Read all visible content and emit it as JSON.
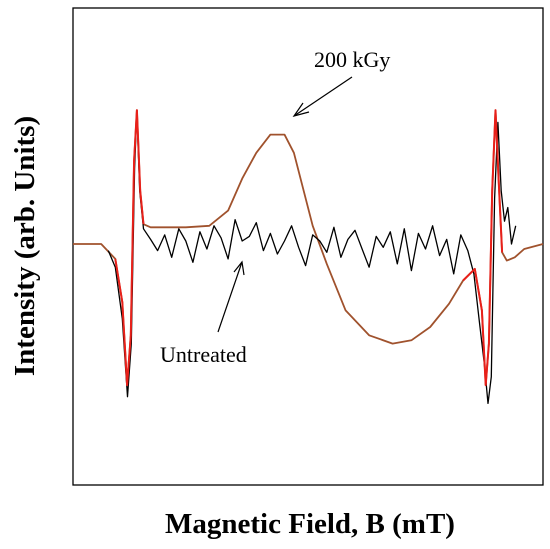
{
  "chart_data": {
    "type": "line",
    "title": "",
    "xlabel": "Magnetic Field, B (mT)",
    "ylabel": "Intensity (arb. Units)",
    "xlim": [
      0,
      100
    ],
    "ylim": [
      -100,
      100
    ],
    "grid": false,
    "legend": "none",
    "series": [
      {
        "name": "200 kGy",
        "color": "#a0522d",
        "peak_color": "#e8201a",
        "x": [
          0,
          6,
          9,
          10.5,
          11.5,
          12.3,
          13,
          13.6,
          14.3,
          15,
          16.5,
          19,
          24,
          29,
          33,
          36,
          39,
          42,
          45,
          47,
          49,
          51,
          54,
          58,
          63,
          68,
          72,
          76,
          80,
          83,
          85.5,
          87,
          87.8,
          88.5,
          89.2,
          89.9,
          90.6,
          91.3,
          92.3,
          94,
          96,
          100
        ],
        "y": [
          0,
          0,
          -9,
          -35,
          -85,
          -55,
          55,
          88,
          35,
          13,
          11,
          11,
          11,
          12,
          22,
          43,
          60,
          72,
          72,
          60,
          36,
          12,
          -12,
          -40,
          -55,
          -60,
          -58,
          -50,
          -36,
          -22,
          -15,
          -40,
          -85,
          -60,
          35,
          88,
          40,
          -5,
          -10,
          -8,
          -3,
          0
        ]
      },
      {
        "name": "Untreated",
        "color": "#000000",
        "x": [
          7.5,
          9,
          10.5,
          11.6,
          12.4,
          13.1,
          13.6,
          14.2,
          15,
          16.5,
          18,
          19.5,
          21,
          22.5,
          24,
          25.5,
          27,
          28.5,
          30,
          31.5,
          33,
          34.5,
          36,
          37.5,
          39,
          40.5,
          42,
          43.5,
          45,
          46.5,
          48,
          49.5,
          51,
          52.5,
          54,
          55.5,
          57,
          58.5,
          60,
          61.5,
          63,
          64.5,
          66,
          67.5,
          69,
          70.5,
          72,
          73.5,
          75,
          76.5,
          78,
          79.5,
          81,
          82.5,
          84,
          85.3,
          86.5,
          87.5,
          88.3,
          89,
          89.7,
          90.4,
          91.1,
          91.8,
          92.5,
          93.3,
          94.2
        ],
        "y": [
          -4,
          -14,
          -45,
          -92,
          -60,
          50,
          88,
          35,
          10,
          3,
          -4,
          6,
          -8,
          10,
          2,
          -11,
          8,
          -3,
          12,
          4,
          -9,
          16,
          2,
          5,
          14,
          -4,
          7,
          -6,
          2,
          12,
          -2,
          -13,
          6,
          2,
          -5,
          11,
          -8,
          3,
          9,
          -3,
          -14,
          5,
          -2,
          8,
          -12,
          10,
          -16,
          7,
          -3,
          12,
          -7,
          3,
          -18,
          6,
          -4,
          -18,
          -48,
          -72,
          -96,
          -80,
          30,
          80,
          35,
          15,
          24,
          0,
          12
        ]
      }
    ],
    "annotations": [
      {
        "text": "200 kGy"
      },
      {
        "text": "Untreated"
      }
    ]
  }
}
